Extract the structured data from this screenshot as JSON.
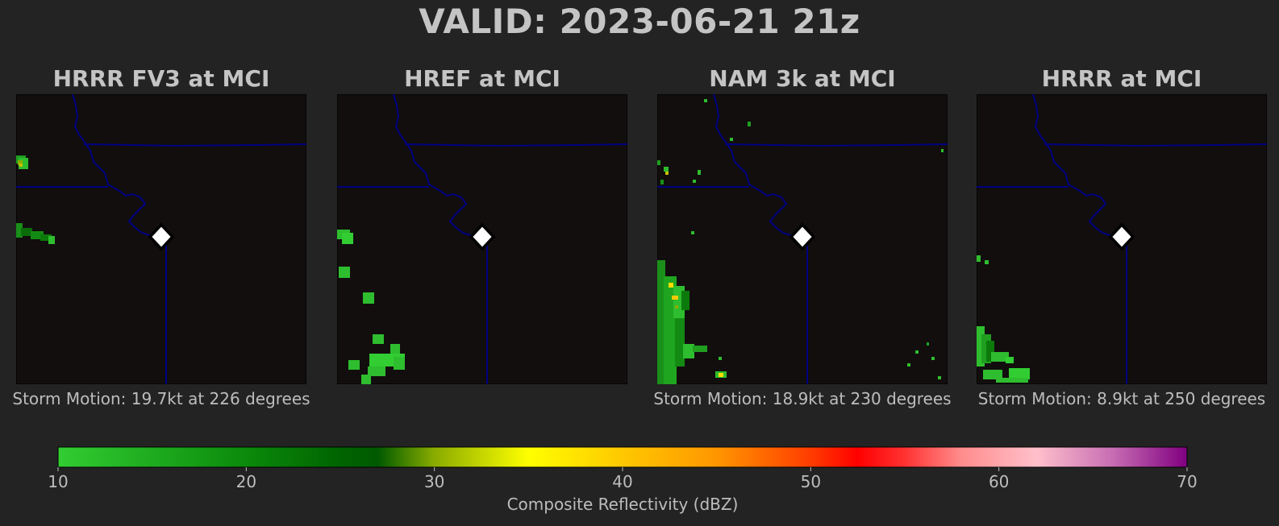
{
  "title": "VALID: 2023-06-21 21z",
  "colors": {
    "background": "#232323",
    "map_background": "#120e0e",
    "boundary": "#000080",
    "text": "#c0c0c0"
  },
  "panels": [
    {
      "title": "HRRR FV3 at MCI",
      "storm_motion": "Storm Motion: 19.7kt at 226 degrees"
    },
    {
      "title": "HREF at MCI",
      "storm_motion": ""
    },
    {
      "title": "NAM 3k at MCI",
      "storm_motion": "Storm Motion: 18.9kt at 230 degrees"
    },
    {
      "title": "HRRR at MCI",
      "storm_motion": "Storm Motion: 8.9kt at 250 degrees"
    }
  ],
  "chart_data": {
    "type": "heatmap",
    "colorbar": {
      "label": "Composite Reflectivity (dBZ)",
      "range": [
        10,
        70
      ],
      "ticks": [
        "10",
        "20",
        "30",
        "40",
        "50",
        "60",
        "70"
      ],
      "stops": [
        [
          10,
          "#32cd32"
        ],
        [
          20,
          "#0b8a0b"
        ],
        [
          25,
          "#006400"
        ],
        [
          27,
          "#005a00"
        ],
        [
          30,
          "#8aac00"
        ],
        [
          35,
          "#ffff00"
        ],
        [
          40,
          "#ffc800"
        ],
        [
          45,
          "#ff9600"
        ],
        [
          50,
          "#ff3c00"
        ],
        [
          52.5,
          "#ff0000"
        ],
        [
          55,
          "#ff3232"
        ],
        [
          58,
          "#ff8c8c"
        ],
        [
          62,
          "#ffc0cb"
        ],
        [
          66,
          "#c86eb4"
        ],
        [
          70,
          "#800080"
        ]
      ]
    },
    "site_marker": "MCI",
    "panels": [
      {
        "name": "HRRR FV3 at MCI",
        "storm_motion_kt": 19.7,
        "storm_motion_deg": 226
      },
      {
        "name": "HREF at MCI"
      },
      {
        "name": "NAM 3k at MCI",
        "storm_motion_kt": 18.9,
        "storm_motion_deg": 230
      },
      {
        "name": "HRRR at MCI",
        "storm_motion_kt": 8.9,
        "storm_motion_deg": 250
      }
    ]
  }
}
